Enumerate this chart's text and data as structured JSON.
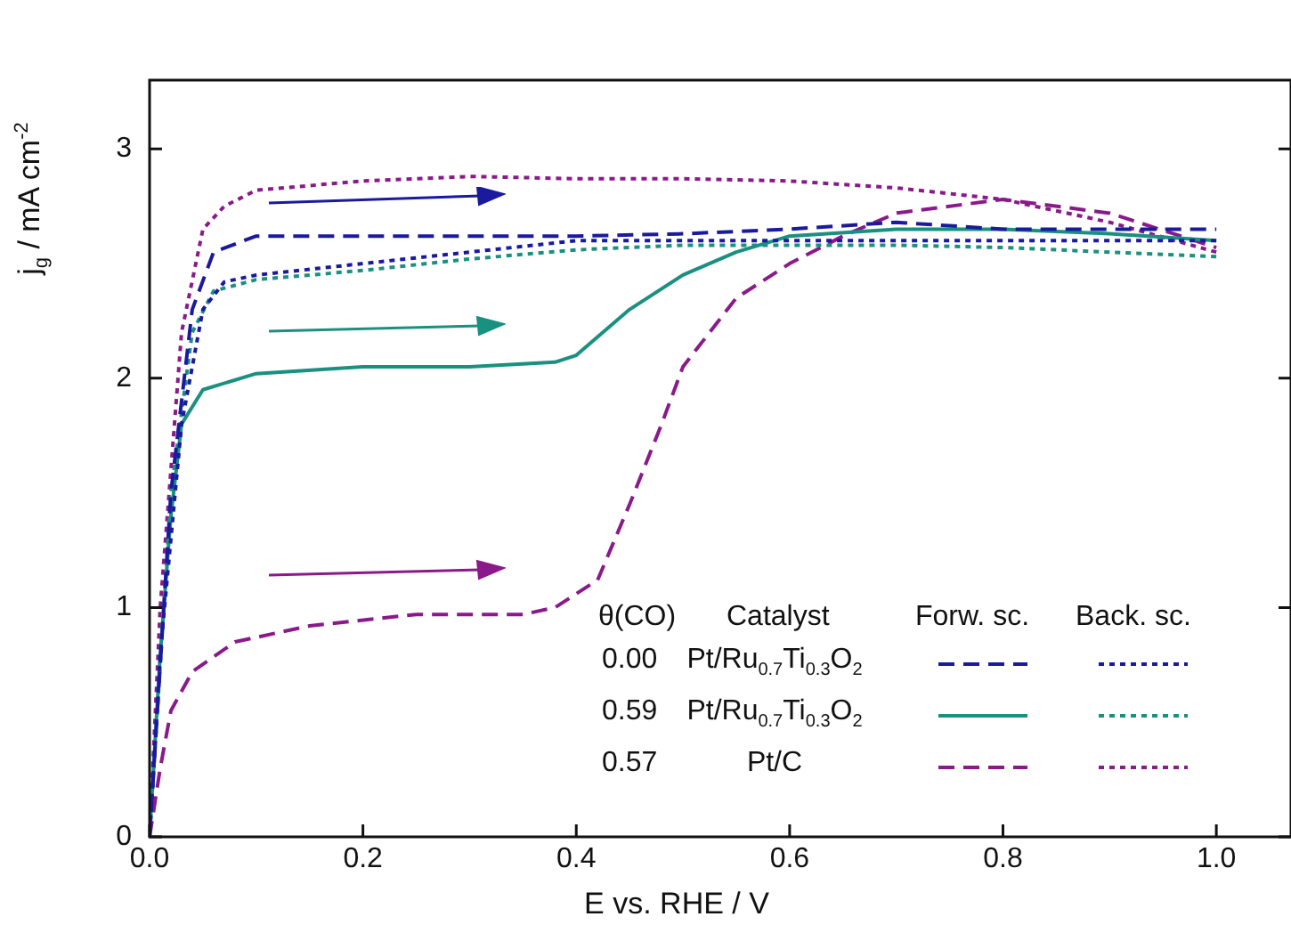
{
  "chart_data": {
    "type": "line",
    "xlabel": "E vs. RHE / V",
    "ylabel": "j$_{g}$ / mA cm$^{-2}$",
    "xlim": [
      0,
      1.07
    ],
    "ylim": [
      0,
      3.3
    ],
    "xticks": [
      {
        "value": 0,
        "label": "0.0"
      },
      0.2,
      0.4,
      0.6,
      0.8,
      {
        "value": 1,
        "label": "1.0"
      }
    ],
    "yticks": [
      0,
      1,
      2,
      3
    ],
    "grid": false,
    "legend": false,
    "marker": "none",
    "annotations": [
      "θ(CO)",
      "Catalyst",
      "Forw. sc.",
      "Back. sc.",
      "0.00",
      "Pt/Ru$_{0.7}$Ti$_{0.3}$O$_{2}$",
      "0.59",
      "Pt/Ru$_{0.7}$Ti$_{0.3}$O$_{2}$",
      "0.57",
      "Pt/C"
    ],
    "series": [
      {
        "color": "#1a1a9e",
        "line_style": "dashed",
        "x": [
          0,
          0.02,
          0.04,
          0.06,
          0.1,
          0.2,
          0.3,
          0.4,
          0.5,
          0.6,
          0.7,
          0.8,
          0.9,
          1.0
        ],
        "values": [
          0,
          1.5,
          2.3,
          2.55,
          2.62,
          2.62,
          2.62,
          2.62,
          2.63,
          2.65,
          2.68,
          2.65,
          2.65,
          2.65
        ]
      },
      {
        "color": "#1a1a9e",
        "line_style": "dotted",
        "x": [
          1.0,
          0.9,
          0.8,
          0.7,
          0.6,
          0.5,
          0.4,
          0.3,
          0.2,
          0.1,
          0.07,
          0.05,
          0.03,
          0.01,
          0
        ],
        "values": [
          2.6,
          2.6,
          2.6,
          2.6,
          2.6,
          2.6,
          2.6,
          2.55,
          2.5,
          2.45,
          2.42,
          2.3,
          1.8,
          0.8,
          0
        ]
      },
      {
        "color": "#1a9080",
        "line_style": "solid",
        "x": [
          0,
          0.01,
          0.02,
          0.03,
          0.05,
          0.1,
          0.2,
          0.3,
          0.38,
          0.4,
          0.45,
          0.5,
          0.55,
          0.6,
          0.7,
          0.8,
          0.9,
          1.0
        ],
        "values": [
          0,
          0.8,
          1.4,
          1.8,
          1.95,
          2.02,
          2.05,
          2.05,
          2.07,
          2.1,
          2.3,
          2.45,
          2.55,
          2.62,
          2.65,
          2.65,
          2.63,
          2.6
        ]
      },
      {
        "color": "#1a9080",
        "line_style": "dotted",
        "x": [
          1.0,
          0.9,
          0.8,
          0.7,
          0.6,
          0.5,
          0.4,
          0.3,
          0.2,
          0.1,
          0.06,
          0.04,
          0.02,
          0
        ],
        "values": [
          2.53,
          2.55,
          2.57,
          2.58,
          2.58,
          2.58,
          2.56,
          2.52,
          2.47,
          2.43,
          2.38,
          2.2,
          1.5,
          0
        ]
      },
      {
        "color": "#8a1a8a",
        "line_style": "dashed",
        "x": [
          0,
          0.01,
          0.02,
          0.04,
          0.08,
          0.15,
          0.25,
          0.35,
          0.38,
          0.42,
          0.45,
          0.48,
          0.5,
          0.55,
          0.6,
          0.65,
          0.7,
          0.8,
          0.9,
          1.0
        ],
        "values": [
          0,
          0.3,
          0.55,
          0.72,
          0.85,
          0.92,
          0.97,
          0.97,
          1.0,
          1.12,
          1.45,
          1.8,
          2.05,
          2.35,
          2.5,
          2.62,
          2.72,
          2.78,
          2.72,
          2.57
        ]
      },
      {
        "color": "#8a1a8a",
        "line_style": "dotted",
        "x": [
          1.0,
          0.9,
          0.8,
          0.7,
          0.6,
          0.5,
          0.4,
          0.3,
          0.2,
          0.1,
          0.07,
          0.05,
          0.03,
          0.01,
          0
        ],
        "values": [
          2.55,
          2.68,
          2.78,
          2.83,
          2.86,
          2.87,
          2.87,
          2.88,
          2.86,
          2.82,
          2.75,
          2.65,
          2.2,
          1.0,
          0
        ]
      }
    ]
  }
}
